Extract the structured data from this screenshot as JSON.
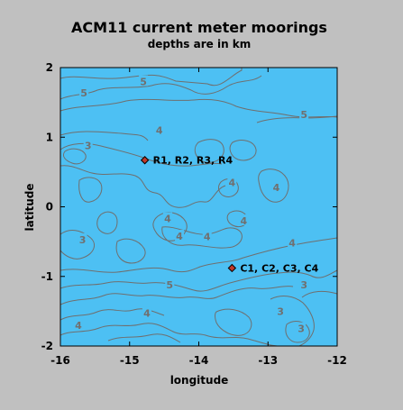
{
  "title": "ACM11 current meter moorings",
  "subtitle": "depths are in km",
  "axes": {
    "xlabel": "longitude",
    "ylabel": "latitude",
    "xlim": [
      -16,
      -12
    ],
    "ylim": [
      -2,
      2
    ],
    "x_ticks": [
      -16,
      -15,
      -14,
      -13,
      -12
    ],
    "y_ticks": [
      -2,
      -1,
      0,
      1,
      2
    ]
  },
  "colors": {
    "ocean": "#4dc0f3",
    "contour": "#6f6f6f",
    "marker": "#c0392b",
    "background": "#c0c0c0"
  },
  "moorings": [
    {
      "label": "R1, R2, R3, R4",
      "lon": -14.78,
      "lat": 0.67
    },
    {
      "label": "C1, C2, C3, C4",
      "lon": -13.52,
      "lat": -0.88
    }
  ],
  "contour_labels": [
    {
      "text": "5",
      "lon": -15.66,
      "lat": 1.64
    },
    {
      "text": "5",
      "lon": -14.8,
      "lat": 1.8
    },
    {
      "text": "5",
      "lon": -12.48,
      "lat": 1.33
    },
    {
      "text": "3",
      "lon": -15.6,
      "lat": 0.88
    },
    {
      "text": "4",
      "lon": -14.57,
      "lat": 1.1
    },
    {
      "text": "4",
      "lon": -13.52,
      "lat": 0.35
    },
    {
      "text": "4",
      "lon": -12.88,
      "lat": 0.28
    },
    {
      "text": "4",
      "lon": -14.45,
      "lat": -0.17
    },
    {
      "text": "4",
      "lon": -14.28,
      "lat": -0.42
    },
    {
      "text": "4",
      "lon": -13.88,
      "lat": -0.43
    },
    {
      "text": "4",
      "lon": -13.35,
      "lat": -0.2
    },
    {
      "text": "3",
      "lon": -15.68,
      "lat": -0.47
    },
    {
      "text": "4",
      "lon": -12.65,
      "lat": -0.52
    },
    {
      "text": "5",
      "lon": -14.42,
      "lat": -1.12
    },
    {
      "text": "3",
      "lon": -12.48,
      "lat": -1.12
    },
    {
      "text": "4",
      "lon": -14.75,
      "lat": -1.53
    },
    {
      "text": "4",
      "lon": -15.74,
      "lat": -1.7
    },
    {
      "text": "3",
      "lon": -12.82,
      "lat": -1.5
    },
    {
      "text": "3",
      "lon": -12.52,
      "lat": -1.75
    }
  ]
}
